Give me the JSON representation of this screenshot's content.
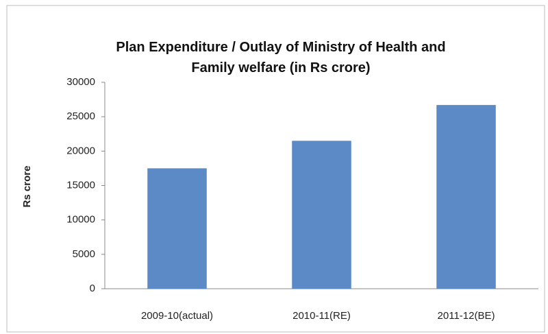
{
  "chart_data": {
    "type": "bar",
    "title": "Plan Expenditure / Outlay of Ministry of  Health and\nFamily welfare (in Rs crore)",
    "ylabel": "Rs crore",
    "categories": [
      "2009-10(actual)",
      "2010-11(RE)",
      "2011-12(BE)"
    ],
    "values": [
      17500,
      21500,
      26700
    ],
    "color": "#5b8ac6",
    "ylim": [
      0,
      30000
    ],
    "yticks": [
      0,
      5000,
      10000,
      15000,
      20000,
      25000,
      30000
    ],
    "grid": false
  }
}
